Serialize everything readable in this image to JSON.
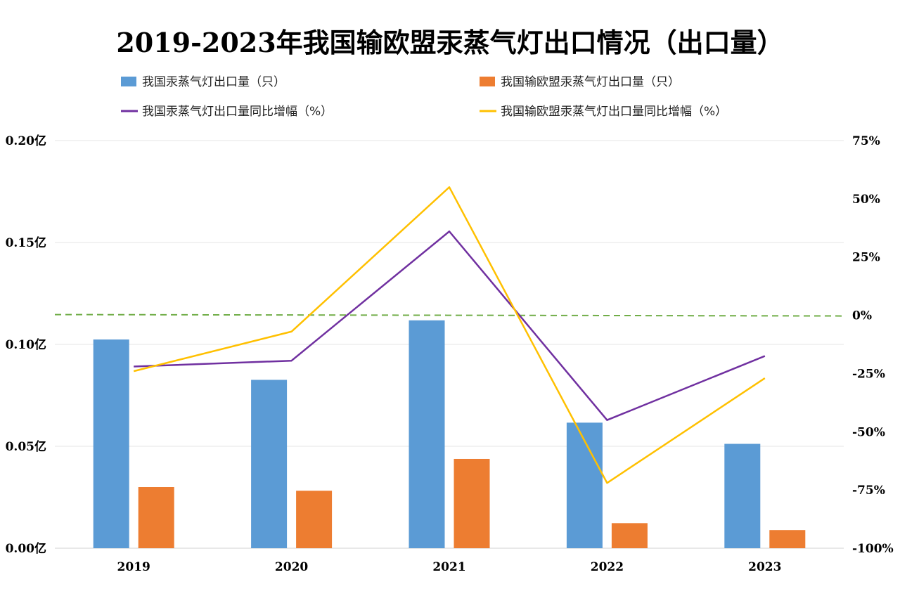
{
  "chart_data": {
    "type": "bar",
    "title": "2019-2023年我国输欧盟汞蒸气灯出口情况（出口量）",
    "categories": [
      "2019",
      "2020",
      "2021",
      "2022",
      "2023"
    ],
    "series": [
      {
        "name": "我国汞蒸气灯出口量（只）",
        "kind": "bar",
        "axis": "left",
        "color": "#5b9bd5",
        "values": [
          10240000,
          8260000,
          11180000,
          6160000,
          5120000
        ]
      },
      {
        "name": "我国输欧盟汞蒸气灯出口量（只）",
        "kind": "bar",
        "axis": "left",
        "color": "#ed7d31",
        "values": [
          3000000,
          2820000,
          4380000,
          1230000,
          890000
        ]
      },
      {
        "name": "我国汞蒸气灯出口量同比增幅（%）",
        "kind": "line",
        "axis": "right",
        "color": "#7030a0",
        "values": [
          -22,
          -19.5,
          36,
          -45,
          -17.5
        ]
      },
      {
        "name": "我国输欧盟汞蒸气灯出口量同比增幅（%）",
        "kind": "line",
        "axis": "right",
        "color": "#ffc000",
        "values": [
          -24,
          -7,
          55,
          -72,
          -27
        ]
      }
    ],
    "left_axis": {
      "ylim": [
        0,
        20000000
      ],
      "ticks": [
        0,
        5000000,
        10000000,
        15000000,
        20000000
      ],
      "tick_labels": [
        "0.00亿",
        "0.05亿",
        "0.10亿",
        "0.15亿",
        "0.20亿"
      ]
    },
    "right_axis": {
      "ylim": [
        -100,
        75
      ],
      "ticks": [
        -100,
        -75,
        -50,
        -25,
        0,
        25,
        50,
        75
      ],
      "tick_labels": [
        "-100%",
        "-75%",
        "-50%",
        "-25%",
        "0%",
        "25%",
        "50%",
        "75%"
      ]
    },
    "reference_line": {
      "value": 0,
      "axis": "right",
      "style": "dashed",
      "color": "#70ad47"
    },
    "grid": true,
    "legend_position": "top"
  }
}
